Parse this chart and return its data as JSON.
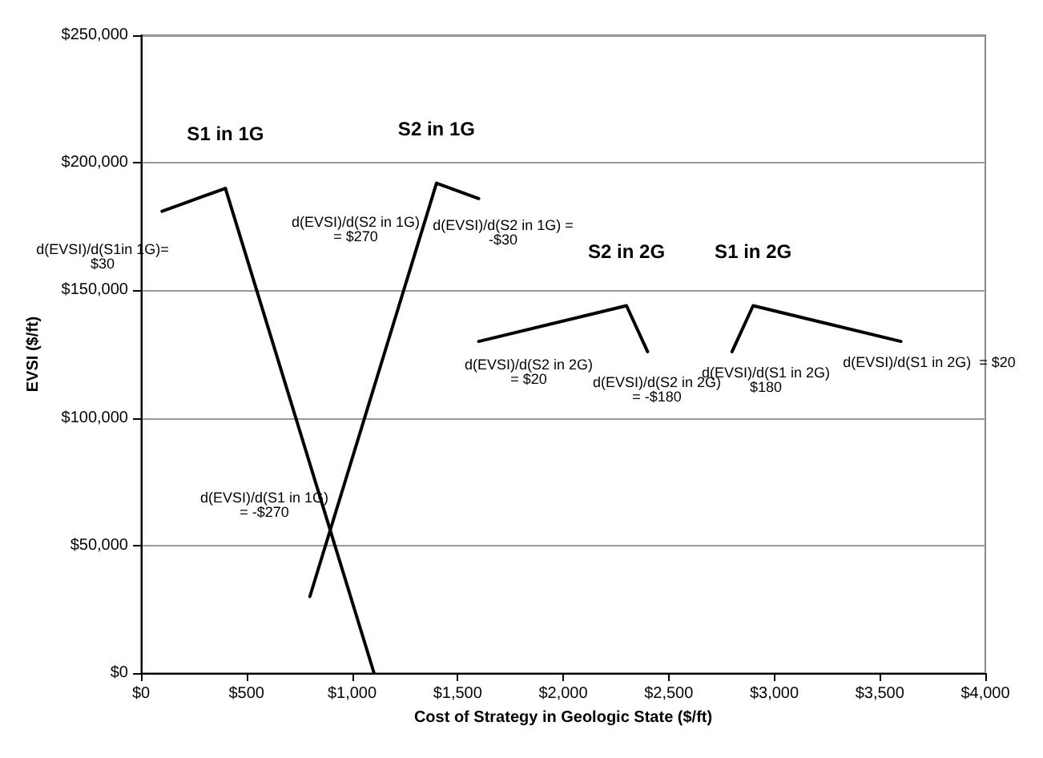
{
  "chart_data": {
    "type": "line",
    "xlabel": "Cost of Strategy in Geologic State ($/ft)",
    "ylabel": "EVSI ($/ft)",
    "xlim": [
      0,
      4000
    ],
    "xticks": [
      {
        "value": 0,
        "label": "$0"
      },
      {
        "value": 500,
        "label": "$500"
      },
      {
        "value": 1000,
        "label": "$1,000"
      },
      {
        "value": 1500,
        "label": "$1,500"
      },
      {
        "value": 2000,
        "label": "$2,000"
      },
      {
        "value": 2500,
        "label": "$2,500"
      },
      {
        "value": 3000,
        "label": "$3,000"
      },
      {
        "value": 3500,
        "label": "$3,500"
      },
      {
        "value": 4000,
        "label": "$4,000"
      }
    ],
    "ylim": [
      0,
      250000
    ],
    "yticks": [
      {
        "value": 0,
        "label": "$0"
      },
      {
        "value": 50000,
        "label": "$50,000"
      },
      {
        "value": 100000,
        "label": "$100,000"
      },
      {
        "value": 150000,
        "label": "$150,000"
      },
      {
        "value": 200000,
        "label": "$200,000"
      },
      {
        "value": 250000,
        "label": "$250,000"
      }
    ],
    "grid": "y",
    "legend": false,
    "marker": "none",
    "series": [
      {
        "name": "S1 in 1G",
        "color": "#000000",
        "x": [
          100,
          400,
          1104
        ],
        "values": [
          181000,
          190000,
          0
        ]
      },
      {
        "name": "S2 in 1G",
        "color": "#000000",
        "x": [
          800,
          1400,
          1600
        ],
        "values": [
          30000,
          192000,
          186000
        ]
      },
      {
        "name": "S2 in 2G",
        "color": "#000000",
        "x": [
          1600,
          2300,
          2400
        ],
        "values": [
          130000,
          144000,
          126000
        ]
      },
      {
        "name": "S1 in 2G",
        "color": "#000000",
        "x": [
          2800,
          2900,
          3600
        ],
        "values": [
          126000,
          144000,
          130000
        ]
      }
    ],
    "annotations": [
      "d(EVSI)/d(S1in 1G)=\n$30",
      "d(EVSI)/d(S1 in 1G)\n= -$270",
      "d(EVSI)/d(S2 in 1G)\n= $270",
      "d(EVSI)/d(S2 in 1G) =\n-$30",
      "d(EVSI)/d(S2 in 2G)\n= $20",
      "d(EVSI)/d(S2 in 2G)\n= -$180",
      "d(EVSI)/d(S1 in 2G)\n$180",
      "d(EVSI)/d(S1 in 2G)  = $20"
    ]
  }
}
